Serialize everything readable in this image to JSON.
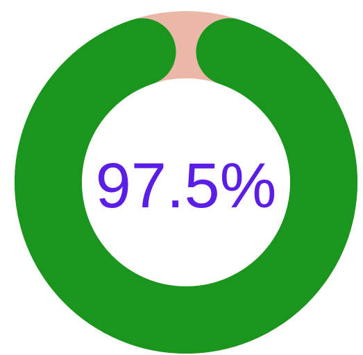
{
  "chart_data": {
    "type": "progress-ring",
    "value": 97.5,
    "value_label": "97.5%",
    "max": 100,
    "color": "#1a961f",
    "track_color": "#ebb8a8",
    "label_color": "#5a1ee6"
  }
}
